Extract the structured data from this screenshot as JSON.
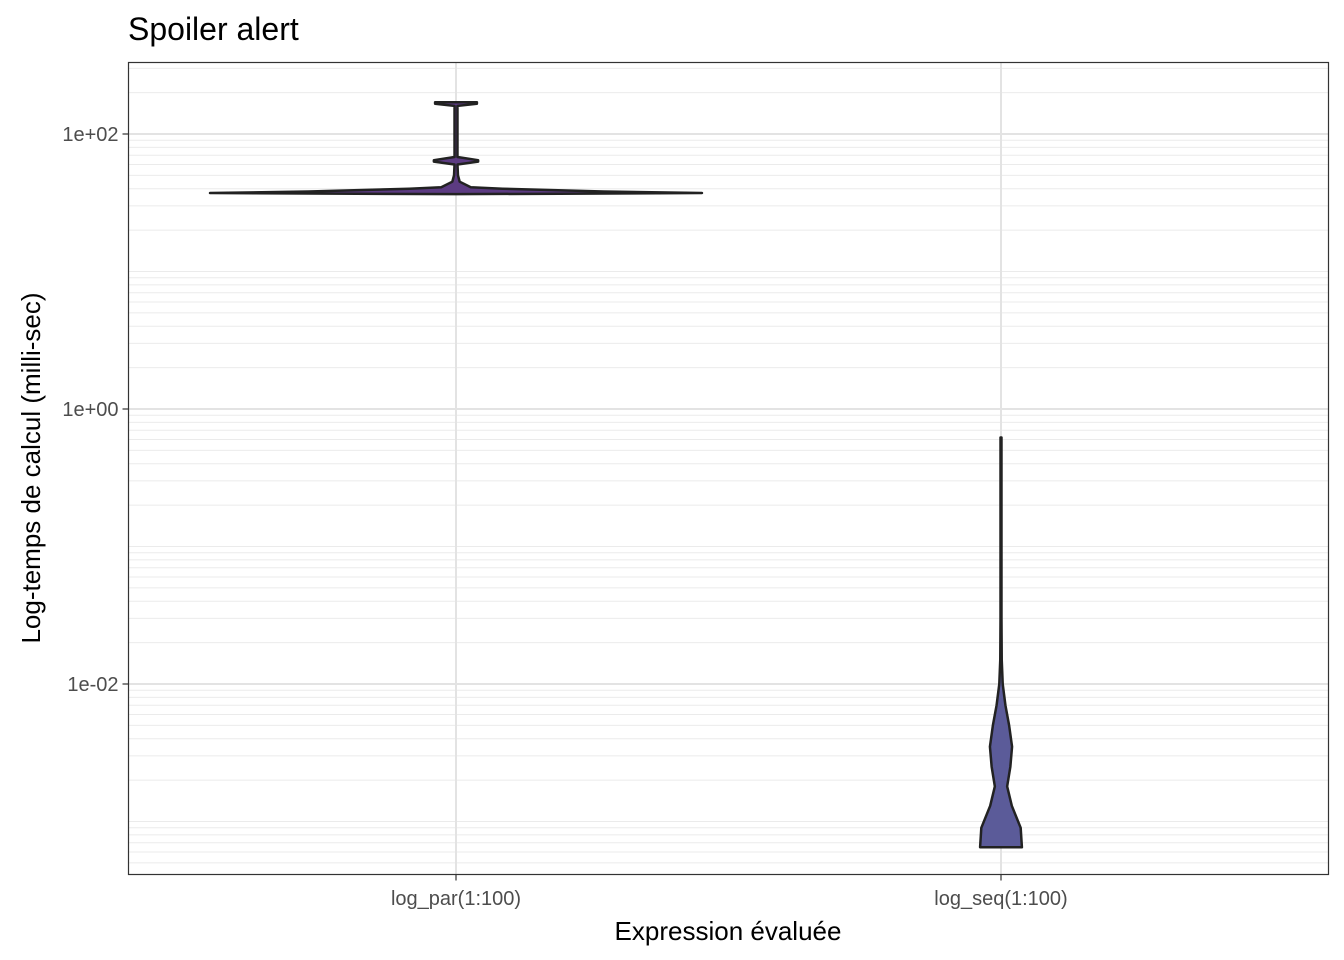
{
  "chart_data": {
    "type": "violin",
    "title": "Spoiler alert",
    "xlabel": "Expression évaluée",
    "ylabel": "Log-temps de calcul (milli-sec)",
    "y_scale": "log10",
    "ylim": [
      0.0006,
      300
    ],
    "y_ticks": [
      {
        "value": 0.01,
        "label": "1e-02"
      },
      {
        "value": 1,
        "label": "1e+00"
      },
      {
        "value": 100,
        "label": "1e+02"
      }
    ],
    "categories": [
      "log_par(1:100)",
      "log_seq(1:100)"
    ],
    "series": [
      {
        "category": "log_par(1:100)",
        "fill": "#5c3b82",
        "min": 36.5,
        "max": 170,
        "profile": [
          {
            "y": 36.5,
            "density": 0.0
          },
          {
            "y": 37.2,
            "density": 1.0
          },
          {
            "y": 38.2,
            "density": 0.6
          },
          {
            "y": 39.2,
            "density": 0.36
          },
          {
            "y": 40.0,
            "density": 0.19
          },
          {
            "y": 41.0,
            "density": 0.06
          },
          {
            "y": 45.0,
            "density": 0.015
          },
          {
            "y": 50.0,
            "density": 0.008
          },
          {
            "y": 60.0,
            "density": 0.006
          },
          {
            "y": 63.0,
            "density": 0.09
          },
          {
            "y": 64.5,
            "density": 0.09
          },
          {
            "y": 68.0,
            "density": 0.006
          },
          {
            "y": 160.0,
            "density": 0.006
          },
          {
            "y": 166.0,
            "density": 0.085
          },
          {
            "y": 170.0,
            "density": 0.085
          }
        ]
      },
      {
        "category": "log_seq(1:100)",
        "fill": "#5b5b99",
        "min": 0.00065,
        "max": 0.62,
        "profile": [
          {
            "y": 0.00065,
            "density": 0.085
          },
          {
            "y": 0.0009,
            "density": 0.08
          },
          {
            "y": 0.0013,
            "density": 0.044
          },
          {
            "y": 0.0018,
            "density": 0.025
          },
          {
            "y": 0.0025,
            "density": 0.038
          },
          {
            "y": 0.0035,
            "density": 0.045
          },
          {
            "y": 0.005,
            "density": 0.033
          },
          {
            "y": 0.007,
            "density": 0.018
          },
          {
            "y": 0.01,
            "density": 0.007
          },
          {
            "y": 0.015,
            "density": 0.003
          },
          {
            "y": 0.03,
            "density": 0.002
          },
          {
            "y": 0.62,
            "density": 0.002
          }
        ]
      }
    ],
    "grid": true,
    "legend": "none"
  }
}
